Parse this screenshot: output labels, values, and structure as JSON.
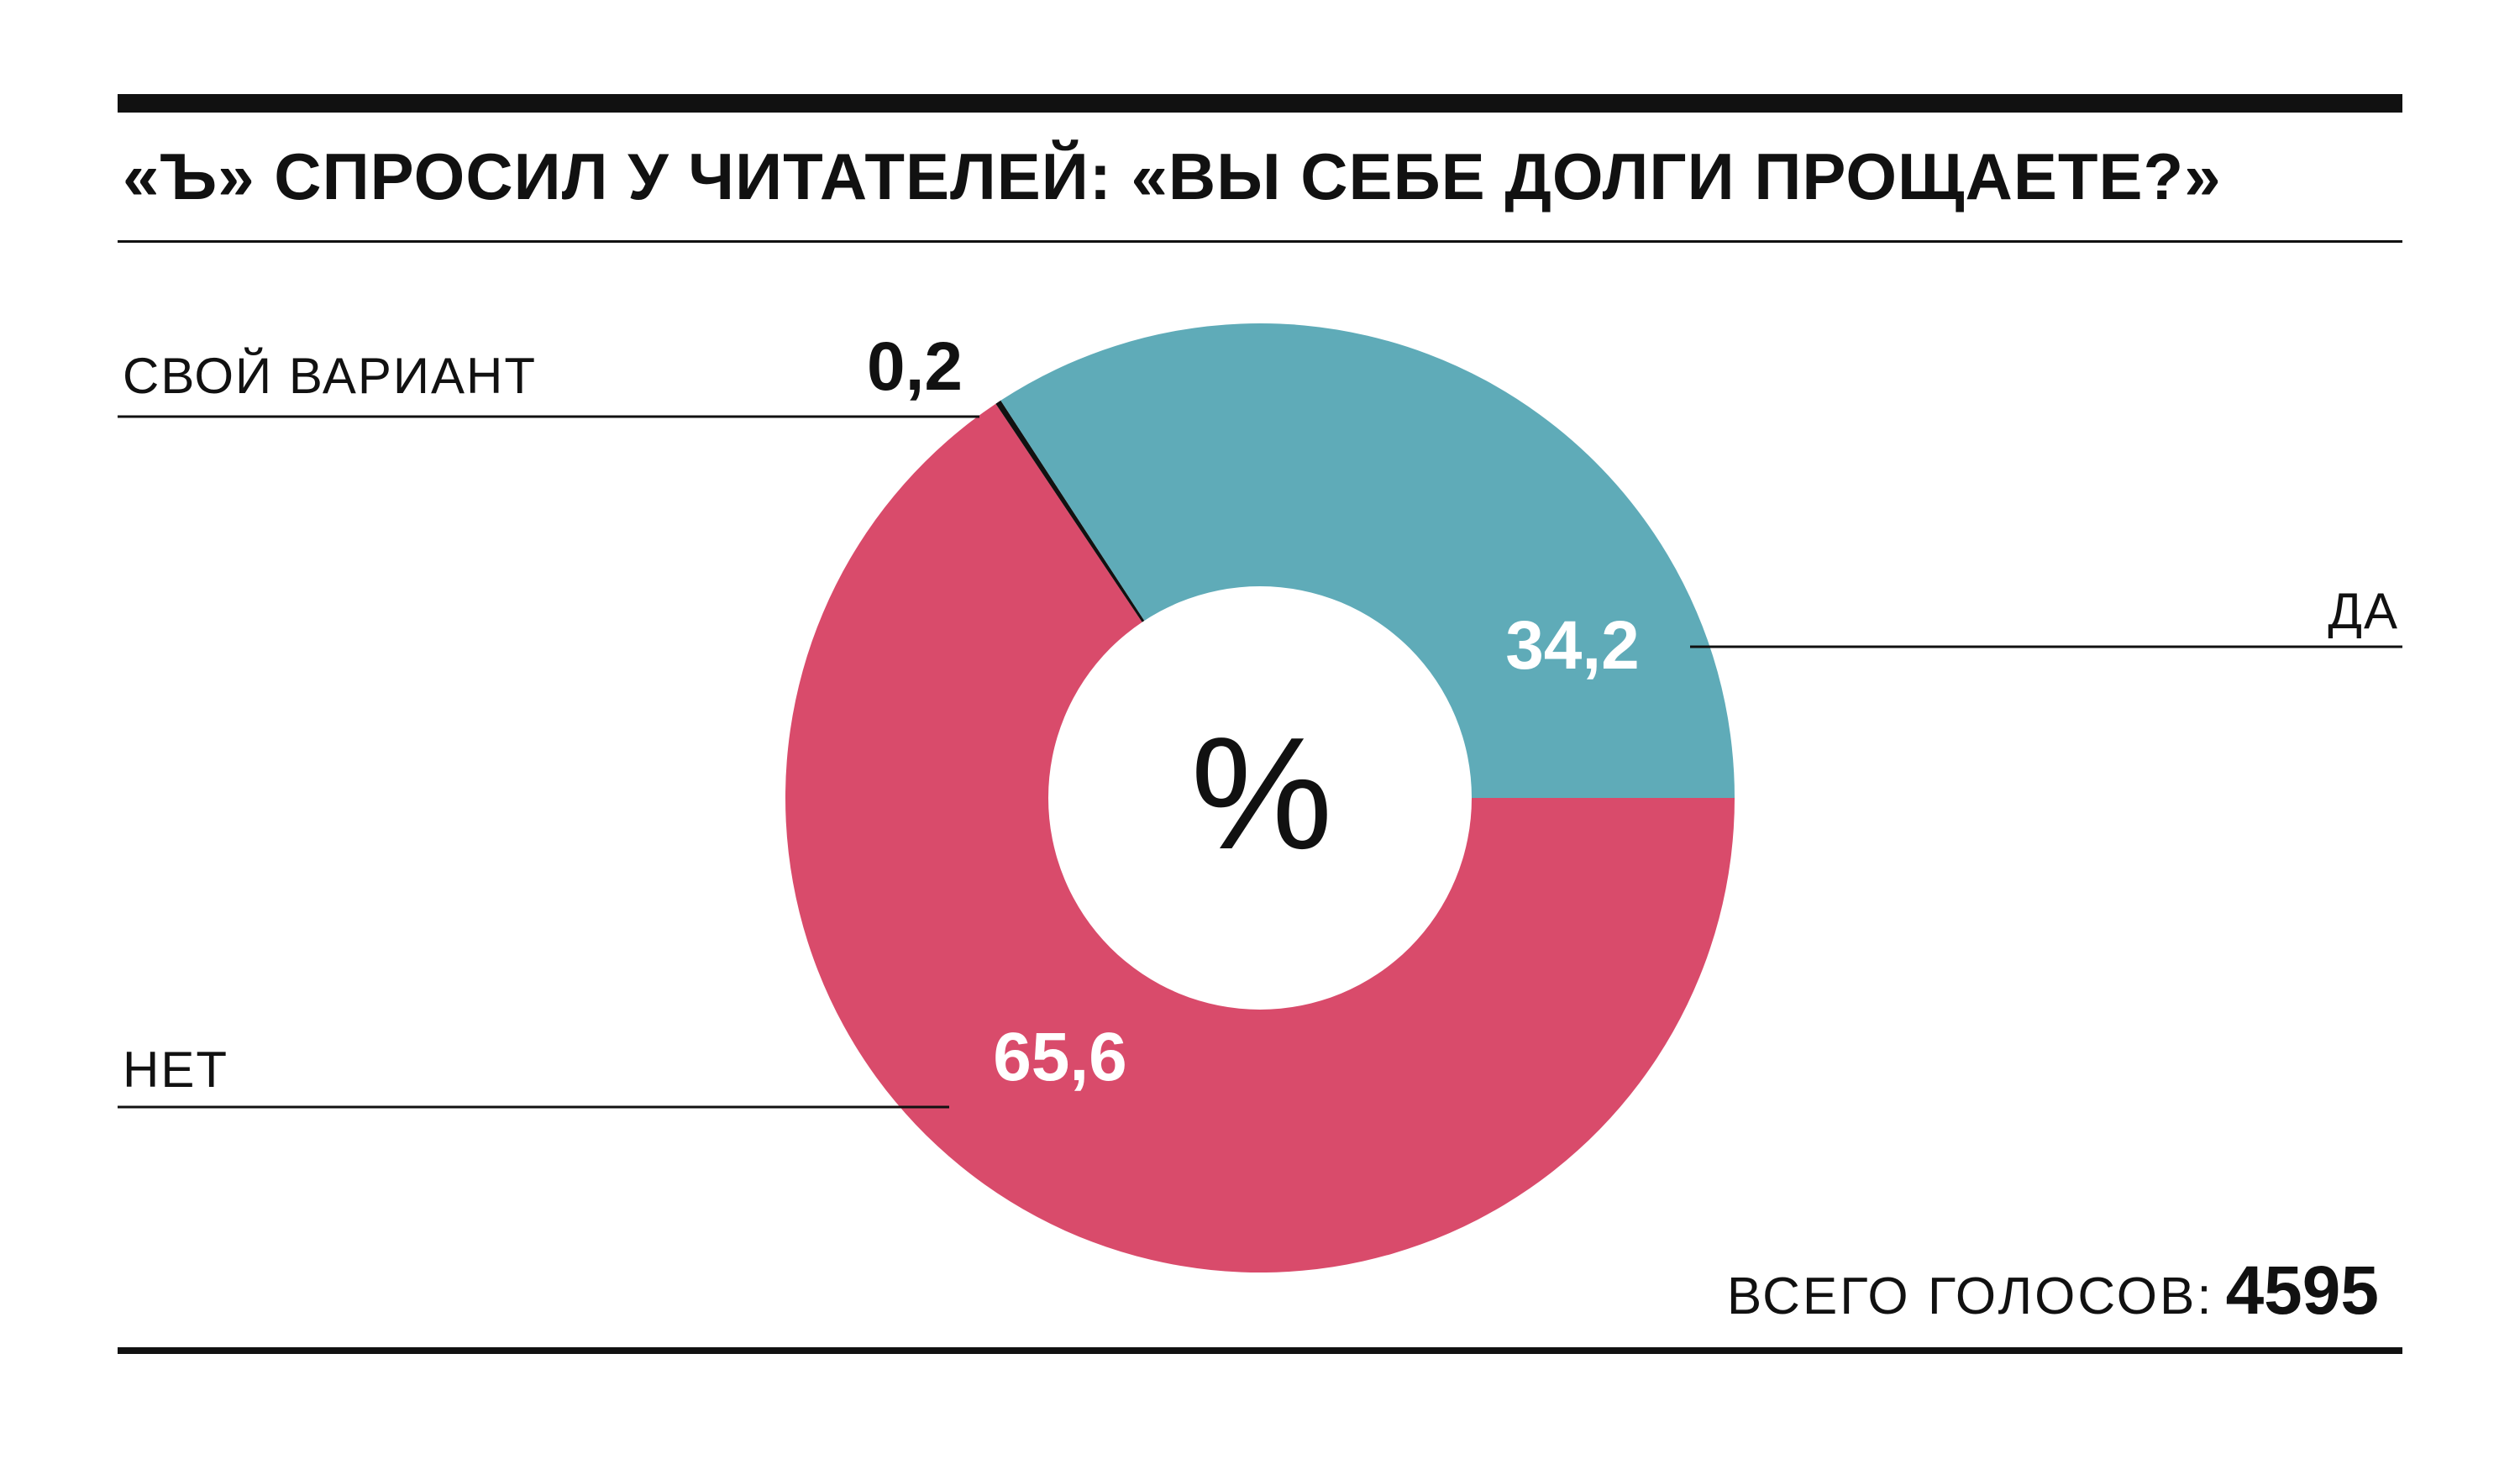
{
  "header": {
    "title": "«Ъ» СПРОСИЛ У ЧИТАТЕЛЕЙ: «ВЫ СЕБЕ ДОЛГИ ПРОЩАЕТЕ?»"
  },
  "chart_data": {
    "type": "pie",
    "style": "donut",
    "title": "«Ъ» СПРОСИЛ У ЧИТАТЕЛЕЙ: «ВЫ СЕБЕ ДОЛГИ ПРОЩАЕТЕ?»",
    "unit": "%",
    "slices": [
      {
        "label": "ДА",
        "value": 34.2,
        "display": "34,2",
        "color": "#5fabb8"
      },
      {
        "label": "НЕТ",
        "value": 65.6,
        "display": "65,6",
        "color": "#d94b6b"
      },
      {
        "label": "СВОЙ ВАРИАНТ",
        "value": 0.2,
        "display": "0,2",
        "color": "#111111"
      }
    ]
  },
  "footer": {
    "total_label": "ВСЕГО ГОЛОСОВ:",
    "total_value": "4595"
  }
}
